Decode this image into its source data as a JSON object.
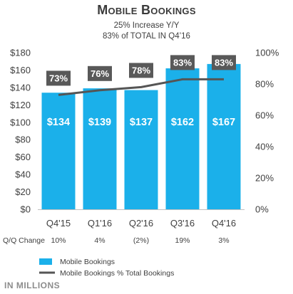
{
  "header": {
    "title": "Mobile Bookings",
    "subtitle_1": "25% Increase Y/Y",
    "subtitle_2": "83% of TOTAL IN Q4’16"
  },
  "footer": {
    "note": "IN MILLIONS"
  },
  "chart_data": {
    "type": "bar",
    "categories": [
      "Q4'15",
      "Q1'16",
      "Q2'16",
      "Q3'16",
      "Q4'16"
    ],
    "series": [
      {
        "name": "Mobile Bookings",
        "type": "bar",
        "values": [
          134,
          139,
          137,
          162,
          167
        ],
        "labels": [
          "$134",
          "$139",
          "$137",
          "$162",
          "$167"
        ],
        "color": "#1bb0ea",
        "axis": "left"
      },
      {
        "name": "Mobile Bookings % Total Bookings",
        "type": "line",
        "values": [
          73,
          76,
          78,
          83,
          83
        ],
        "labels": [
          "73%",
          "76%",
          "78%",
          "83%",
          "83%"
        ],
        "color": "#555555",
        "axis": "right"
      }
    ],
    "y_left": {
      "range": [
        0,
        180
      ],
      "ticks": [
        "$0",
        "$20",
        "$40",
        "$60",
        "$80",
        "$100",
        "$120",
        "$140",
        "$160",
        "$180"
      ]
    },
    "y_right": {
      "range": [
        0,
        100
      ],
      "ticks": [
        "0%",
        "20%",
        "40%",
        "60%",
        "80%",
        "100%"
      ]
    },
    "qoq_change": {
      "label": "Q/Q Change",
      "values": [
        "10%",
        "4%",
        "(2%)",
        "19%",
        "3%"
      ]
    },
    "legend_position": "bottom-left",
    "grid": false
  }
}
